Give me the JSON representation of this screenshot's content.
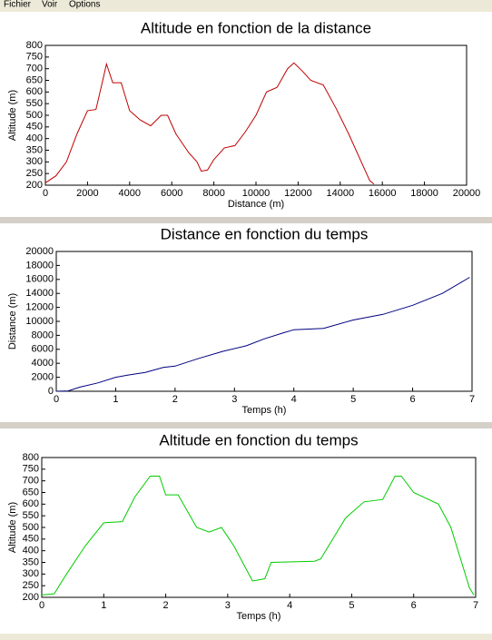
{
  "menu": [
    "Fichier",
    "Voir",
    "Options"
  ],
  "chart_data": [
    {
      "type": "line",
      "title": "Altitude en fonction de la distance",
      "xlabel": "Distance (m)",
      "ylabel": "Altitude (m)",
      "color": "#c00000",
      "x": [
        0,
        500,
        1000,
        1500,
        2000,
        2400,
        2700,
        2900,
        3200,
        3600,
        4000,
        4500,
        5000,
        5500,
        5800,
        6200,
        6800,
        7200,
        7400,
        7700,
        8000,
        8500,
        9000,
        9500,
        10000,
        10500,
        11000,
        11500,
        11800,
        12200,
        12600,
        13200,
        13800,
        14400,
        15000,
        15400,
        15600
      ],
      "values": [
        210,
        240,
        300,
        420,
        520,
        525,
        640,
        720,
        640,
        640,
        520,
        480,
        455,
        500,
        500,
        420,
        340,
        300,
        260,
        265,
        310,
        360,
        370,
        430,
        500,
        600,
        620,
        700,
        725,
        690,
        650,
        630,
        530,
        420,
        300,
        220,
        205
      ],
      "xlim": [
        0,
        20000
      ],
      "ylim": [
        200,
        800
      ],
      "xticks": [
        0,
        2000,
        4000,
        6000,
        8000,
        10000,
        12000,
        14000,
        16000,
        18000,
        20000
      ],
      "yticks": [
        200,
        250,
        300,
        350,
        400,
        450,
        500,
        550,
        600,
        650,
        700,
        750,
        800
      ]
    },
    {
      "type": "line",
      "title": "Distance en fonction du temps",
      "xlabel": "Temps (h)",
      "ylabel": "Distance (m)",
      "color": "#000080",
      "x": [
        0,
        0.2,
        0.4,
        0.7,
        1.0,
        1.2,
        1.5,
        1.8,
        2.0,
        2.4,
        2.8,
        3.2,
        3.5,
        3.8,
        4.0,
        4.5,
        5.0,
        5.5,
        6.0,
        6.5,
        6.96
      ],
      "values": [
        0,
        50,
        600,
        1200,
        2000,
        2300,
        2700,
        3400,
        3600,
        4700,
        5700,
        6500,
        7500,
        8300,
        8800,
        9000,
        10200,
        11000,
        12300,
        14000,
        16300
      ],
      "xlim": [
        0,
        7
      ],
      "ylim": [
        0,
        20000
      ],
      "xticks": [
        0,
        1,
        2,
        3,
        4,
        5,
        6,
        7
      ],
      "yticks": [
        0,
        2000,
        4000,
        6000,
        8000,
        10000,
        12000,
        14000,
        16000,
        18000,
        20000
      ]
    },
    {
      "type": "line",
      "title": "Altitude en fonction du temps",
      "xlabel": "Temps (h)",
      "ylabel": "Altitude (m)",
      "color": "#00cc00",
      "x": [
        0,
        0.2,
        0.4,
        0.7,
        1.0,
        1.3,
        1.5,
        1.75,
        1.9,
        2.0,
        2.2,
        2.5,
        2.7,
        2.9,
        3.1,
        3.4,
        3.6,
        3.7,
        4.4,
        4.5,
        4.9,
        5.2,
        5.5,
        5.7,
        5.8,
        6.0,
        6.4,
        6.6,
        6.9,
        6.97
      ],
      "values": [
        210,
        215,
        300,
        420,
        520,
        525,
        630,
        720,
        720,
        640,
        640,
        500,
        480,
        500,
        420,
        270,
        280,
        350,
        355,
        365,
        540,
        610,
        620,
        720,
        720,
        650,
        600,
        500,
        240,
        210
      ],
      "xlim": [
        0,
        7
      ],
      "ylim": [
        200,
        800
      ],
      "xticks": [
        0,
        1,
        2,
        3,
        4,
        5,
        6,
        7
      ],
      "yticks": [
        200,
        250,
        300,
        350,
        400,
        450,
        500,
        550,
        600,
        650,
        700,
        750,
        800
      ]
    }
  ]
}
